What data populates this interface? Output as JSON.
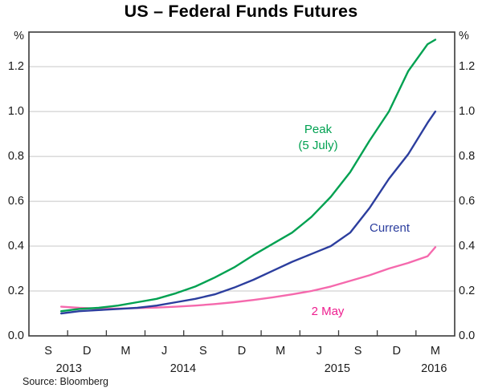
{
  "title": "US – Federal Funds Futures",
  "source": "Source: Bloomberg",
  "chart_data": {
    "type": "line",
    "title": "US – Federal Funds Futures",
    "ylabel": "%",
    "ylim": [
      0,
      1.354
    ],
    "grid": true,
    "legend": "inline-labels",
    "colors": {
      "grid": "#c7c7c7",
      "frame": "#3a3a3a",
      "text": "#1a1a1a"
    },
    "yticks": [
      {
        "label": "0.0",
        "value": 0.0
      },
      {
        "label": "0.2",
        "value": 0.2
      },
      {
        "label": "0.4",
        "value": 0.4
      },
      {
        "label": "0.6",
        "value": 0.6
      },
      {
        "label": "0.8",
        "value": 0.8
      },
      {
        "label": "1.0",
        "value": 1.0
      },
      {
        "label": "1.2",
        "value": 1.2
      }
    ],
    "x_axis": {
      "range": [
        0,
        33
      ],
      "quarter_labels": [
        "S",
        "D",
        "M",
        "J",
        "S",
        "D",
        "M",
        "J",
        "S",
        "D",
        "M"
      ],
      "quarter_label_positions": [
        1.5,
        4.5,
        7.5,
        10.5,
        13.5,
        16.5,
        19.5,
        22.5,
        25.5,
        28.5,
        31.5
      ],
      "tick_positions": [
        3,
        6,
        9,
        12,
        15,
        18,
        21,
        24,
        27,
        30
      ],
      "year_labels": [
        {
          "text": "2013",
          "pos": 3.1
        },
        {
          "text": "2014",
          "pos": 11.95
        },
        {
          "text": "2015",
          "pos": 23.9
        },
        {
          "text": "2016",
          "pos": 31.4
        }
      ]
    },
    "series": [
      {
        "key": "2may",
        "name": "2 May",
        "color": "#f569ad",
        "label_color": "#ee1e8f",
        "points": [
          [
            2.5,
            0.13
          ],
          [
            3.9,
            0.125
          ],
          [
            5.4,
            0.122
          ],
          [
            6.9,
            0.122
          ],
          [
            8.4,
            0.124
          ],
          [
            9.9,
            0.126
          ],
          [
            11.4,
            0.13
          ],
          [
            12.9,
            0.135
          ],
          [
            14.4,
            0.142
          ],
          [
            15.9,
            0.15
          ],
          [
            17.4,
            0.16
          ],
          [
            18.9,
            0.172
          ],
          [
            20.4,
            0.185
          ],
          [
            21.9,
            0.2
          ],
          [
            23.4,
            0.22
          ],
          [
            24.9,
            0.245
          ],
          [
            26.4,
            0.27
          ],
          [
            27.9,
            0.3
          ],
          [
            29.4,
            0.325
          ],
          [
            30.9,
            0.355
          ],
          [
            31.5,
            0.395
          ]
        ]
      },
      {
        "key": "current",
        "name": "Current",
        "color": "#2c3e9e",
        "label_color": "#2c3e9e",
        "points": [
          [
            2.5,
            0.1
          ],
          [
            3.9,
            0.11
          ],
          [
            5.4,
            0.115
          ],
          [
            6.9,
            0.12
          ],
          [
            8.4,
            0.125
          ],
          [
            9.9,
            0.135
          ],
          [
            11.4,
            0.15
          ],
          [
            12.9,
            0.165
          ],
          [
            14.4,
            0.185
          ],
          [
            15.9,
            0.215
          ],
          [
            17.4,
            0.25
          ],
          [
            18.9,
            0.29
          ],
          [
            20.4,
            0.33
          ],
          [
            21.9,
            0.365
          ],
          [
            23.4,
            0.4
          ],
          [
            24.9,
            0.46
          ],
          [
            26.4,
            0.57
          ],
          [
            27.9,
            0.7
          ],
          [
            29.4,
            0.81
          ],
          [
            30.9,
            0.95
          ],
          [
            31.5,
            1.0
          ]
        ]
      },
      {
        "key": "peak",
        "name": "Peak (5 July)",
        "label_lines": [
          "Peak",
          "(5 July)"
        ],
        "color": "#00a151",
        "label_color": "#00a151",
        "points": [
          [
            2.5,
            0.11
          ],
          [
            3.9,
            0.12
          ],
          [
            5.4,
            0.125
          ],
          [
            6.9,
            0.135
          ],
          [
            8.4,
            0.15
          ],
          [
            9.9,
            0.165
          ],
          [
            11.4,
            0.19
          ],
          [
            12.9,
            0.22
          ],
          [
            14.4,
            0.26
          ],
          [
            15.9,
            0.305
          ],
          [
            17.4,
            0.36
          ],
          [
            18.9,
            0.41
          ],
          [
            20.4,
            0.46
          ],
          [
            21.9,
            0.53
          ],
          [
            23.4,
            0.62
          ],
          [
            24.9,
            0.73
          ],
          [
            26.4,
            0.87
          ],
          [
            27.9,
            1.0
          ],
          [
            29.4,
            1.18
          ],
          [
            30.9,
            1.3
          ],
          [
            31.5,
            1.32
          ]
        ]
      }
    ]
  }
}
